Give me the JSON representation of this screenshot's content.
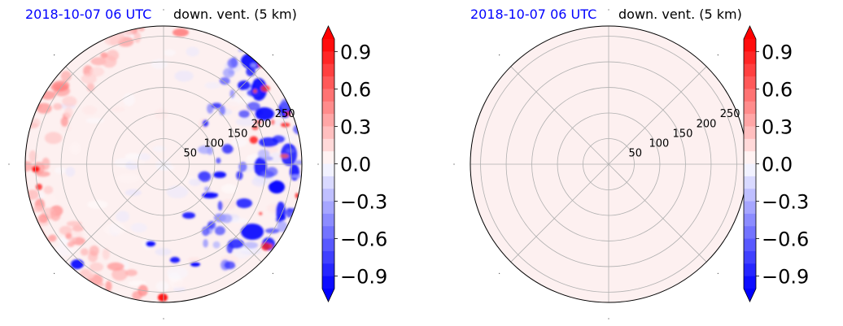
{
  "chart_data": [
    {
      "type": "heatmap",
      "projection": "polar",
      "title_left": "2018-10-07 06 UTC",
      "title_right": "down. vent. (5 km)",
      "radial_ticks": [
        "50",
        "100",
        "150",
        "200",
        "250"
      ],
      "radial_values": [
        50,
        100,
        150,
        200,
        250
      ],
      "angular_gridlines_deg": [
        0,
        45,
        90,
        135,
        180,
        225,
        270,
        315
      ],
      "background_value": 0.05,
      "features": [
        {
          "region": "east rim",
          "sign": "negative",
          "max_abs": 0.9
        },
        {
          "region": "south-east",
          "sign": "negative",
          "max_abs": 0.9
        },
        {
          "region": "west rim",
          "sign": "positive",
          "max_abs": 0.9
        },
        {
          "region": "south rim",
          "sign": "positive",
          "max_abs": 0.9
        }
      ],
      "colorbar": {
        "ticks": [
          "0.9",
          "0.6",
          "0.3",
          "0.0",
          "−0.3",
          "−0.6",
          "−0.9"
        ],
        "tick_values": [
          0.9,
          0.6,
          0.3,
          0.0,
          -0.3,
          -0.6,
          -0.9
        ],
        "range": [
          -1.0,
          1.0
        ],
        "colormap": "bwr",
        "extend": "both"
      }
    },
    {
      "type": "heatmap",
      "projection": "polar",
      "title_left": "2018-10-07 06 UTC",
      "title_right": "down. vent. (5 km)",
      "radial_ticks": [
        "50",
        "100",
        "150",
        "200",
        "250"
      ],
      "radial_values": [
        50,
        100,
        150,
        200,
        250
      ],
      "angular_gridlines_deg": [
        0,
        45,
        90,
        135,
        180,
        225,
        270,
        315
      ],
      "background_value": 0.05,
      "features": [],
      "colorbar": {
        "ticks": [
          "0.9",
          "0.6",
          "0.3",
          "0.0",
          "−0.3",
          "−0.6",
          "−0.9"
        ],
        "tick_values": [
          0.9,
          0.6,
          0.3,
          0.0,
          -0.3,
          -0.6,
          -0.9
        ],
        "range": [
          -1.0,
          1.0
        ],
        "colormap": "bwr",
        "extend": "both"
      }
    }
  ],
  "colors": {
    "date_label": "#0000ff",
    "uniform_fill": "#fdf0f0",
    "grid": "#b0b0b0"
  }
}
